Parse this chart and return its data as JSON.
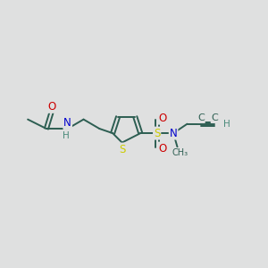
{
  "bg_color": "#dfe0e0",
  "bond_color": "#2d5e52",
  "S_color": "#cccc00",
  "N_color": "#0000cc",
  "O_color": "#cc0000",
  "H_color": "#4a8a7a",
  "figsize": [
    3.0,
    3.0
  ],
  "dpi": 100,
  "xlim": [
    0,
    10
  ],
  "ylim": [
    0,
    10
  ]
}
